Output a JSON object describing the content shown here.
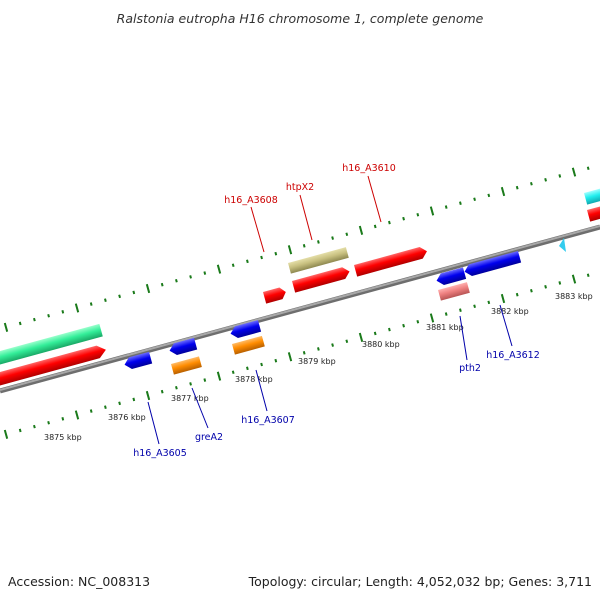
{
  "title": "Ralstonia eutropha H16 chromosome 1, complete genome",
  "footer": {
    "accession": "Accession: NC_008313",
    "summary": "Topology: circular; Length: 4,052,032 bp; Genes: 3,711"
  },
  "ticks": [
    "3875 kbp",
    "3876 kbp",
    "3877 kbp",
    "3878 kbp",
    "3879 kbp",
    "3880 kbp",
    "3881 kbp",
    "3882 kbp",
    "3883 kbp"
  ],
  "genes_top": [
    "h16_A3608",
    "htpX2",
    "h16_A3610"
  ],
  "genes_bottom": [
    "h16_A3605",
    "greA2",
    "h16_A3607",
    "pth2",
    "h16_A3612"
  ],
  "colors": {
    "top_label": "#cc0000",
    "bottom_label": "#0000aa",
    "backbone": "#8a8a8a",
    "ticks": "#1a7a1a",
    "forward_cds": "#ff0000",
    "reverse_cds": "#0000ee",
    "rna": "#ff8c00",
    "pseudo": "#ee8080",
    "misc": "#c8c080",
    "other": "#33ee99",
    "marker": "#33ccee"
  }
}
